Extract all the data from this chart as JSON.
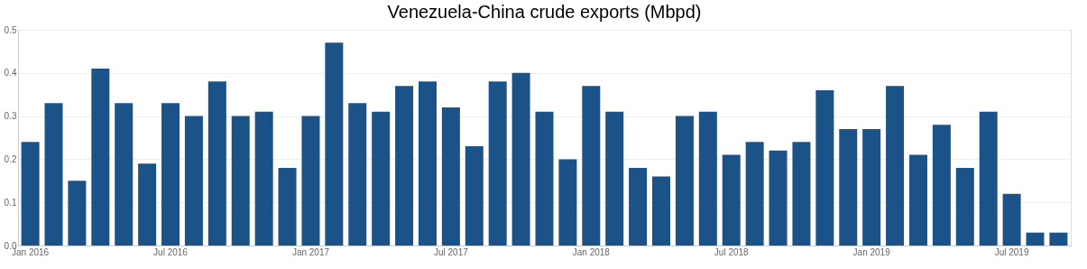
{
  "chart_data": {
    "type": "bar",
    "title": "Venezuela-China crude exports (Mbpd)",
    "categories": [
      "Jan 2016",
      null,
      null,
      null,
      null,
      null,
      "Jul 2016",
      null,
      null,
      null,
      null,
      null,
      "Jan 2017",
      null,
      null,
      null,
      null,
      null,
      "Jul 2017",
      null,
      null,
      null,
      null,
      null,
      "Jan 2018",
      null,
      null,
      null,
      null,
      null,
      "Jul 2018",
      null,
      null,
      null,
      null,
      null,
      "Jan 2019",
      null,
      null,
      null,
      null,
      null,
      "Jul 2019",
      null,
      null
    ],
    "values": [
      0.24,
      0.33,
      0.15,
      0.41,
      0.33,
      0.19,
      0.33,
      0.3,
      0.38,
      0.3,
      0.31,
      0.18,
      0.3,
      0.47,
      0.33,
      0.31,
      0.37,
      0.38,
      0.32,
      0.23,
      0.38,
      0.4,
      0.31,
      0.2,
      0.37,
      0.31,
      0.18,
      0.16,
      0.3,
      0.31,
      0.21,
      0.24,
      0.22,
      0.24,
      0.36,
      0.27,
      0.27,
      0.37,
      0.21,
      0.28,
      0.18,
      0.31,
      0.12,
      0.03,
      0.03
    ],
    "color": "#1b5389",
    "ylim": [
      0,
      0.5
    ],
    "yticks": [
      {
        "value": 0,
        "label": "0.0"
      },
      0.1,
      0.2,
      0.3,
      0.4,
      0.5
    ],
    "grid": "y"
  }
}
